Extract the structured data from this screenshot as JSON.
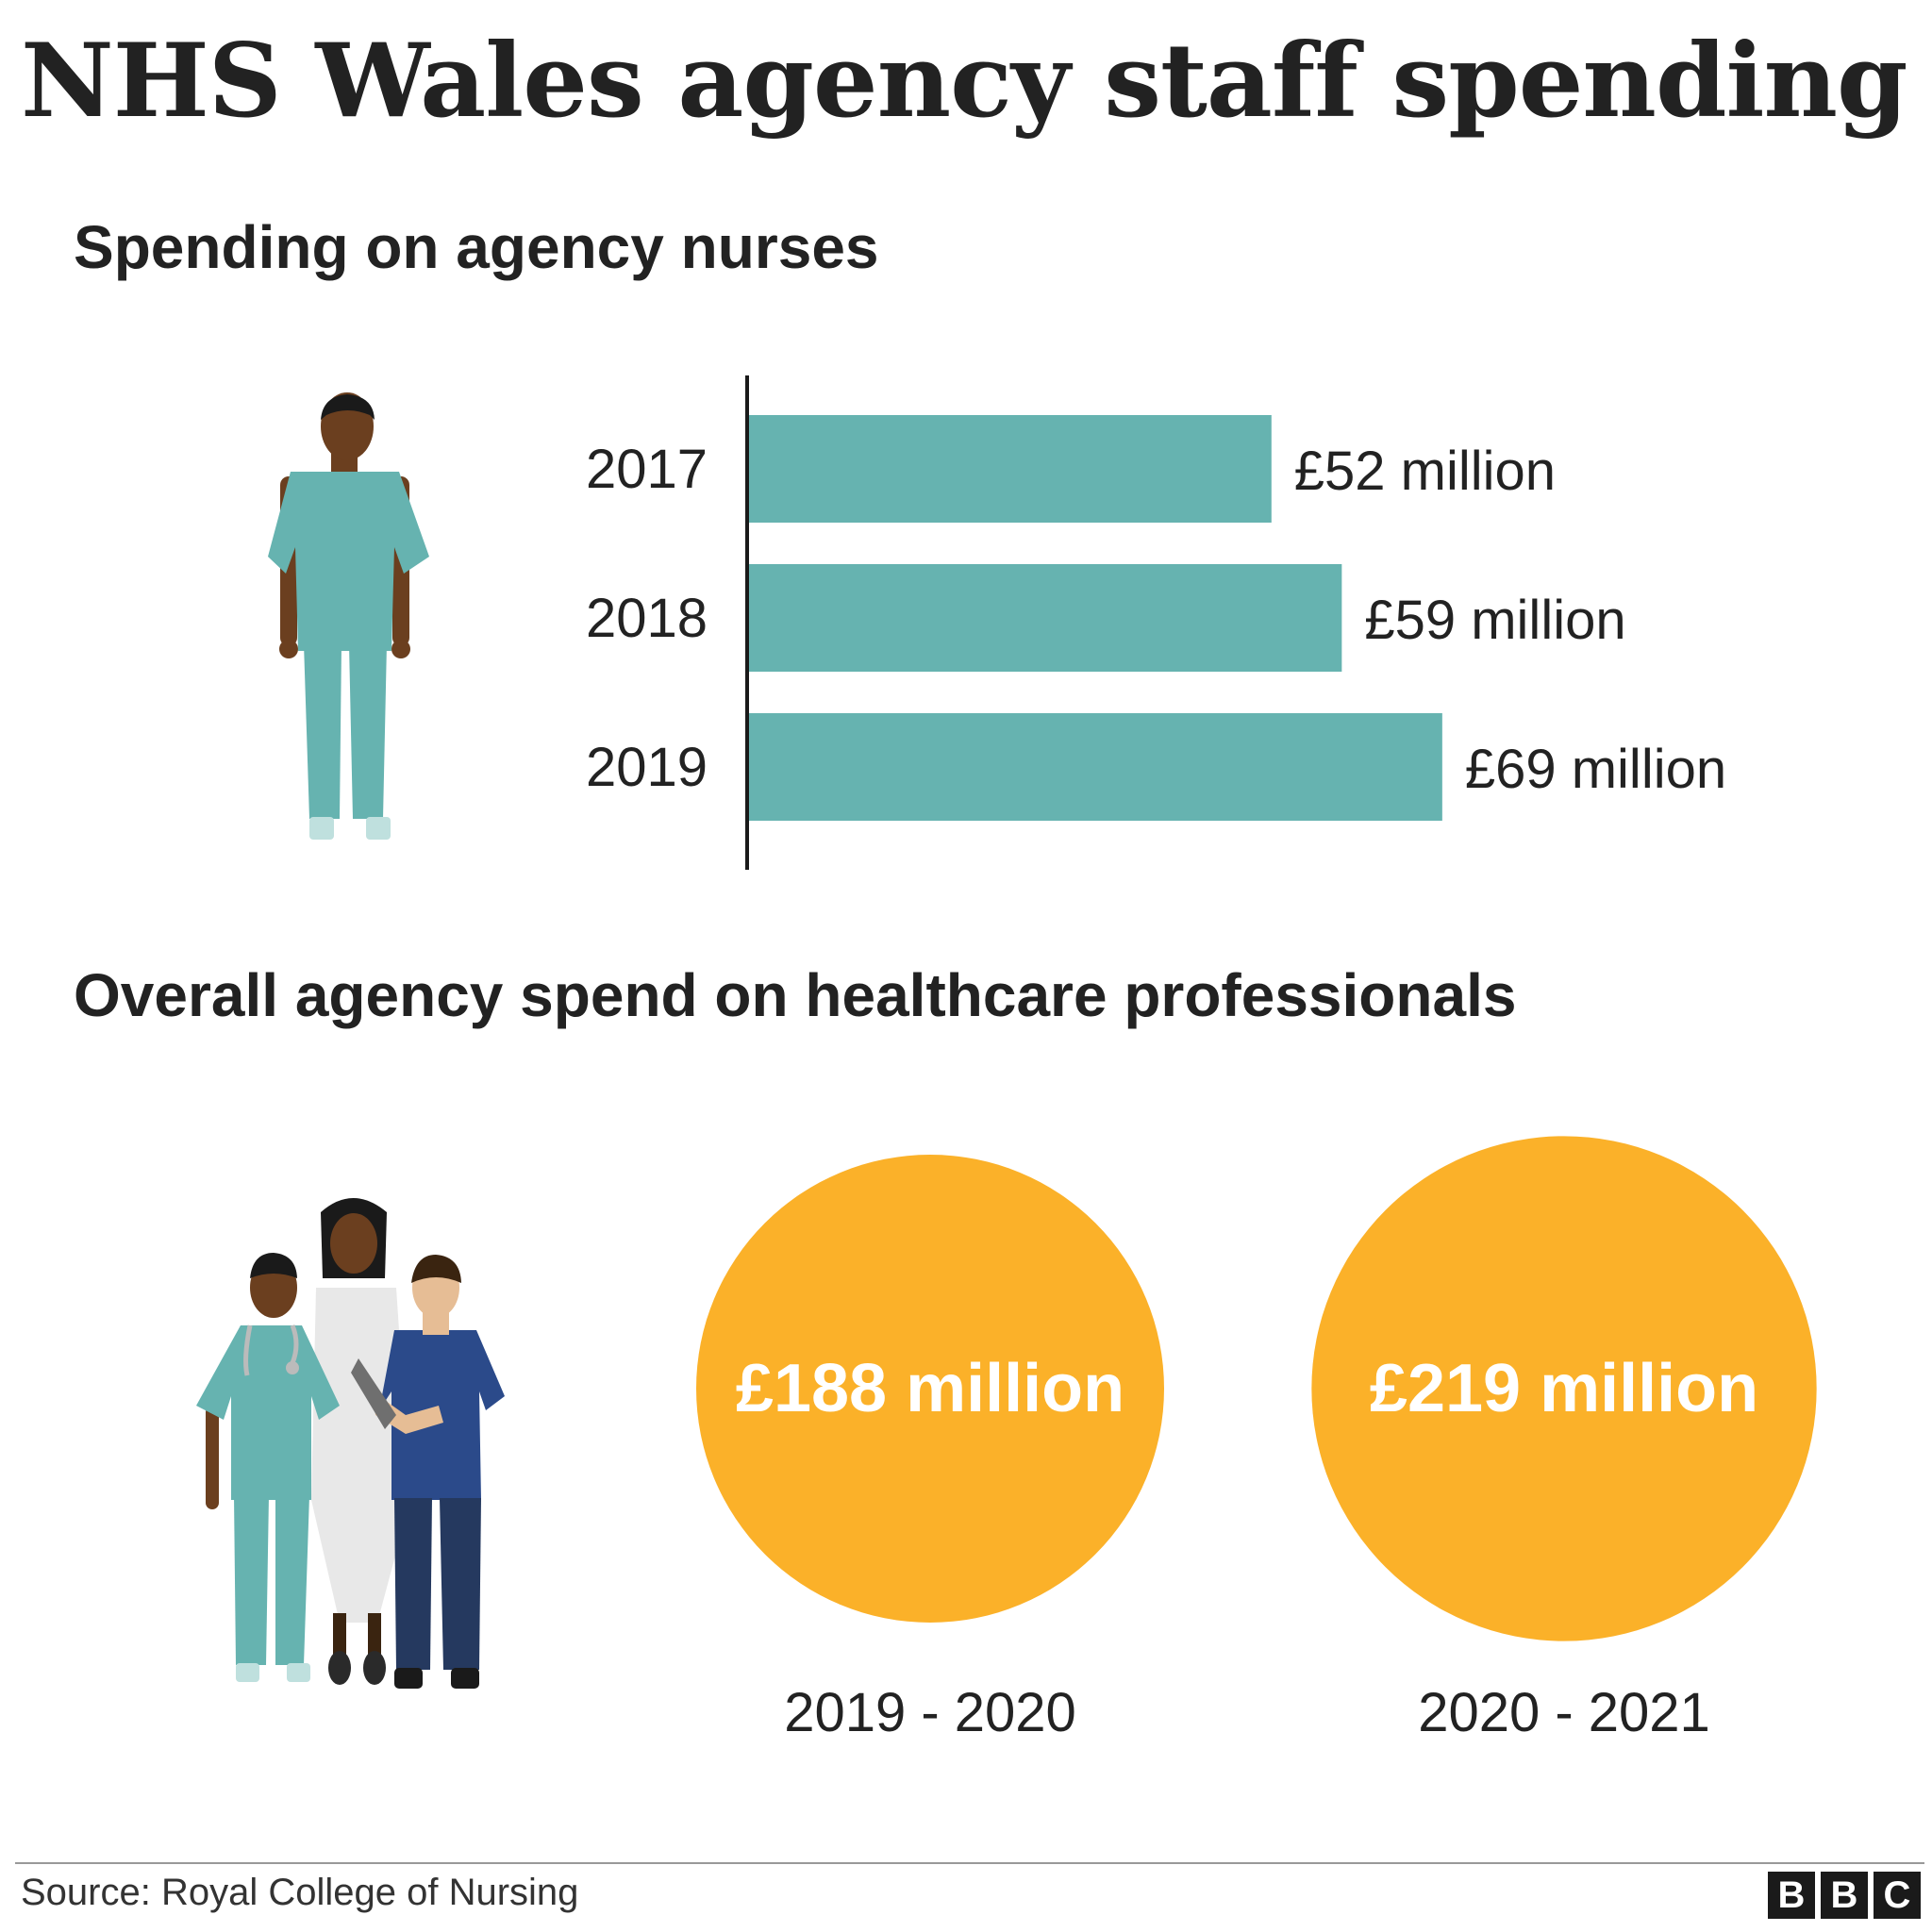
{
  "title": "NHS Wales agency staff spending",
  "source": "Source: Royal College of Nursing",
  "logo": [
    "B",
    "B",
    "C"
  ],
  "colors": {
    "bar": "#66b3b0",
    "circle": "#fbb129",
    "text": "#222222"
  },
  "icons": {
    "nurse": "nurse-figure-icon",
    "team": "healthcare-team-icon"
  },
  "chart_data": [
    {
      "type": "bar",
      "orientation": "horizontal",
      "title": "Spending on agency nurses",
      "categories": [
        "2017",
        "2018",
        "2019"
      ],
      "values": [
        52,
        59,
        69
      ],
      "labels": [
        "£52 million",
        "£59 million",
        "£69 million"
      ],
      "unit": "£ million"
    },
    {
      "type": "bubble",
      "title": "Overall agency spend on healthcare professionals",
      "categories": [
        "2019 - 2020",
        "2020 - 2021"
      ],
      "values": [
        188,
        219
      ],
      "labels": [
        "£188 million",
        "£219 million"
      ],
      "unit": "£ million"
    }
  ]
}
